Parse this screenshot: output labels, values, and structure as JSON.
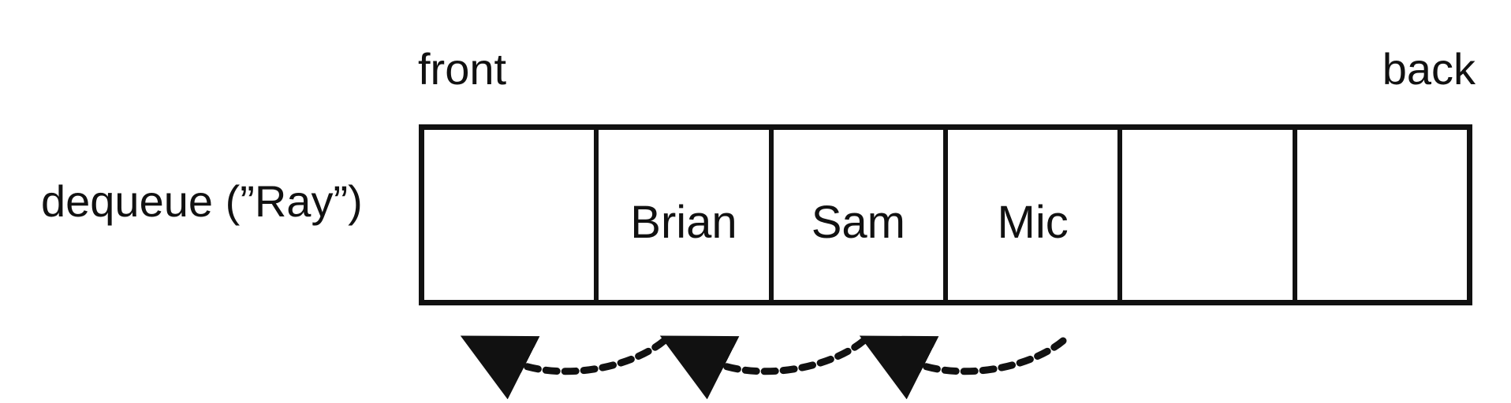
{
  "labels": {
    "front": "front",
    "back": "back",
    "operation": "dequeue (”Ray”)"
  },
  "queue": {
    "cells": [
      "",
      "Brian",
      "Sam",
      "Mic",
      "",
      ""
    ]
  },
  "arrows": {
    "count": 3,
    "style": "dashed-curved-left",
    "color": "#111111"
  }
}
